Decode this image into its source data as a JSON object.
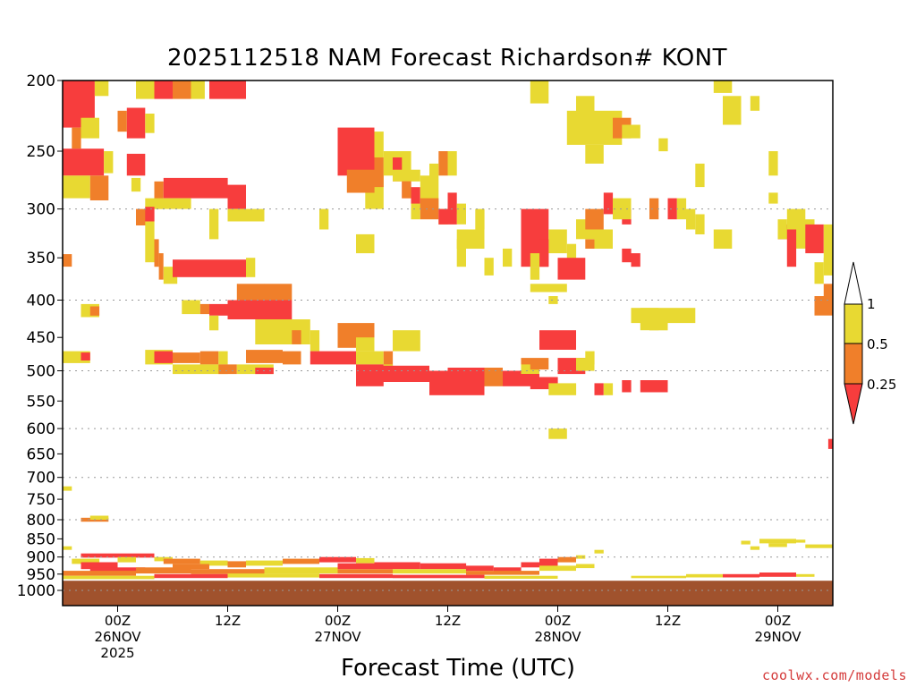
{
  "title": "2025112518 NAM Forecast Richardson# KONT",
  "credit": "coolwx.com/models",
  "chart_data": {
    "type": "heatmap",
    "xlabel": "Forecast Time (UTC)",
    "ylabel": "",
    "x_range_hours": [
      -6,
      78
    ],
    "y_scale": "log",
    "y_range_hPa": [
      1000,
      200
    ],
    "y_ticks": [
      200,
      250,
      300,
      350,
      400,
      450,
      500,
      550,
      600,
      650,
      700,
      750,
      800,
      850,
      900,
      950,
      1000
    ],
    "dotted_gridlines_hPa": [
      300,
      400,
      500,
      600,
      700,
      800,
      900,
      1000
    ],
    "x_ticks": [
      {
        "hour": 0,
        "lines": [
          "00Z",
          "26NOV",
          "2025"
        ]
      },
      {
        "hour": 12,
        "lines": [
          "12Z"
        ]
      },
      {
        "hour": 24,
        "lines": [
          "00Z",
          "27NOV"
        ]
      },
      {
        "hour": 36,
        "lines": [
          "12Z"
        ]
      },
      {
        "hour": 48,
        "lines": [
          "00Z",
          "28NOV"
        ]
      },
      {
        "hour": 60,
        "lines": [
          "12Z"
        ]
      },
      {
        "hour": 72,
        "lines": [
          "00Z",
          "29NOV"
        ]
      }
    ],
    "colorbar": {
      "labels": [
        "1",
        "0.5",
        "0.25"
      ],
      "colors": {
        "upper": "#ffffff",
        "0.5-1": "#e8d932",
        "0.25-0.5": "#f07f2a",
        "below-0.25": "#f73d3d"
      }
    },
    "surface_band": {
      "color": "#a0522d",
      "top_hPa": 970
    },
    "categories": {
      "1": "#e8d932",
      "2": "#f07f2a",
      "3": "#f73d3d"
    },
    "cells": [
      [
        -6,
        -2.5,
        200,
        232,
        3
      ],
      [
        -2.5,
        -1,
        200,
        210,
        1
      ],
      [
        -5,
        -4,
        232,
        248,
        2
      ],
      [
        -4,
        -2,
        225,
        240,
        1
      ],
      [
        2,
        4,
        200,
        212,
        1
      ],
      [
        4,
        6,
        200,
        212,
        3
      ],
      [
        6,
        8,
        200,
        212,
        2
      ],
      [
        8,
        9.5,
        200,
        212,
        1
      ],
      [
        10,
        14,
        200,
        212,
        3
      ],
      [
        1,
        3,
        218,
        240,
        3
      ],
      [
        0,
        1,
        220,
        235,
        2
      ],
      [
        3,
        4,
        222,
        236,
        1
      ],
      [
        -6,
        -1.5,
        248,
        270,
        3
      ],
      [
        -1.5,
        -0.5,
        250,
        268,
        1
      ],
      [
        -6,
        -3,
        270,
        290,
        1
      ],
      [
        -3,
        -1,
        270,
        292,
        2
      ],
      [
        1,
        3,
        252,
        270,
        3
      ],
      [
        1.5,
        2.5,
        272,
        284,
        1
      ],
      [
        4,
        5,
        275,
        300,
        2
      ],
      [
        5,
        12,
        272,
        290,
        3
      ],
      [
        12,
        14,
        278,
        300,
        3
      ],
      [
        3,
        8,
        290,
        300,
        1
      ],
      [
        12,
        16,
        300,
        312,
        1
      ],
      [
        2,
        4,
        300,
        316,
        2
      ],
      [
        3,
        4,
        298,
        312,
        3
      ],
      [
        3,
        4,
        312,
        355,
        1
      ],
      [
        4,
        4.5,
        330,
        360,
        2
      ],
      [
        4.5,
        5,
        345,
        375,
        2
      ],
      [
        5,
        6.5,
        360,
        380,
        1
      ],
      [
        6,
        14,
        352,
        372,
        3
      ],
      [
        14,
        15,
        350,
        372,
        1
      ],
      [
        13,
        16,
        380,
        400,
        2
      ],
      [
        16,
        19,
        380,
        400,
        2
      ],
      [
        13,
        14,
        400,
        416,
        1
      ],
      [
        10,
        12,
        405,
        420,
        3
      ],
      [
        12,
        19,
        400,
        425,
        3
      ],
      [
        7,
        9,
        400,
        418,
        1
      ],
      [
        9,
        10,
        405,
        418,
        2
      ],
      [
        10,
        11,
        420,
        440,
        1
      ],
      [
        15,
        21,
        425,
        460,
        1
      ],
      [
        19,
        20,
        440,
        460,
        2
      ],
      [
        21,
        22,
        440,
        470,
        1
      ],
      [
        -4,
        -2,
        405,
        422,
        1
      ],
      [
        -3,
        -2,
        408,
        420,
        2
      ],
      [
        3,
        6,
        468,
        490,
        1
      ],
      [
        4,
        6,
        470,
        488,
        3
      ],
      [
        6,
        9,
        472,
        488,
        2
      ],
      [
        9,
        11,
        470,
        490,
        2
      ],
      [
        11,
        12,
        470,
        490,
        1
      ],
      [
        14,
        18,
        468,
        488,
        2
      ],
      [
        18,
        20,
        470,
        490,
        2
      ],
      [
        21,
        26,
        470,
        490,
        3
      ],
      [
        26,
        29,
        470,
        490,
        1
      ],
      [
        29,
        30,
        470,
        492,
        2
      ],
      [
        6,
        12,
        490,
        505,
        1
      ],
      [
        11,
        13,
        490,
        505,
        2
      ],
      [
        13,
        17,
        490,
        505,
        1
      ],
      [
        15,
        17,
        495,
        505,
        3
      ],
      [
        26,
        29,
        490,
        525,
        3
      ],
      [
        29,
        30,
        490,
        510,
        1
      ],
      [
        -6,
        -3,
        470,
        488,
        1
      ],
      [
        -4,
        -3,
        472,
        484,
        3
      ],
      [
        26,
        34,
        492,
        518,
        3
      ],
      [
        34,
        36,
        500,
        540,
        3
      ],
      [
        36,
        40,
        495,
        540,
        3
      ],
      [
        40,
        42,
        495,
        525,
        2
      ],
      [
        42,
        44,
        500,
        525,
        3
      ],
      [
        44,
        46,
        495,
        520,
        1
      ],
      [
        30,
        33,
        440,
        470,
        1
      ],
      [
        24,
        28,
        430,
        465,
        2
      ],
      [
        26,
        28,
        450,
        470,
        1
      ],
      [
        27,
        29,
        235,
        300,
        1
      ],
      [
        24,
        28,
        232,
        270,
        3
      ],
      [
        25,
        28,
        265,
        285,
        2
      ],
      [
        28,
        29,
        255,
        280,
        2
      ],
      [
        29,
        32,
        250,
        270,
        1
      ],
      [
        30,
        31,
        255,
        275,
        3
      ],
      [
        31,
        32,
        270,
        290,
        3
      ],
      [
        32,
        33,
        280,
        300,
        3
      ],
      [
        33,
        34,
        270,
        298,
        1
      ],
      [
        35,
        36,
        250,
        270,
        2
      ],
      [
        34,
        35,
        260,
        300,
        1
      ],
      [
        36,
        37,
        250,
        270,
        1
      ],
      [
        36,
        37,
        285,
        305,
        3
      ],
      [
        35,
        36,
        300,
        315,
        1
      ],
      [
        30,
        33,
        265,
        275,
        1
      ],
      [
        31,
        32,
        275,
        290,
        2
      ],
      [
        32,
        33,
        295,
        310,
        1
      ],
      [
        33,
        35,
        290,
        310,
        2
      ],
      [
        35,
        37,
        300,
        315,
        3
      ],
      [
        37,
        38,
        295,
        315,
        1
      ],
      [
        26,
        28,
        325,
        345,
        1
      ],
      [
        38,
        40,
        320,
        340,
        1
      ],
      [
        44,
        47,
        300,
        360,
        3
      ],
      [
        45,
        46,
        360,
        375,
        1
      ],
      [
        47,
        49,
        320,
        345,
        1
      ],
      [
        46,
        47,
        330,
        360,
        3
      ],
      [
        49,
        50,
        335,
        360,
        1
      ],
      [
        48,
        51,
        350,
        375,
        3
      ],
      [
        51,
        52,
        330,
        340,
        2
      ],
      [
        52,
        54,
        320,
        340,
        1
      ],
      [
        55,
        56,
        340,
        355,
        3
      ],
      [
        50,
        52,
        310,
        330,
        1
      ],
      [
        56,
        57,
        345,
        360,
        3
      ],
      [
        55,
        56,
        300,
        315,
        3
      ],
      [
        40,
        41,
        350,
        370,
        1
      ],
      [
        42,
        43,
        340,
        360,
        1
      ],
      [
        45,
        46,
        345,
        360,
        1
      ],
      [
        51,
        53,
        300,
        320,
        2
      ],
      [
        53,
        54,
        285,
        305,
        3
      ],
      [
        54,
        56,
        290,
        310,
        1
      ],
      [
        58,
        59,
        290,
        310,
        2
      ],
      [
        60,
        61,
        290,
        310,
        3
      ],
      [
        61,
        62,
        290,
        310,
        1
      ],
      [
        62,
        63,
        300,
        320,
        1
      ],
      [
        65,
        66,
        320,
        340,
        1
      ],
      [
        66,
        67,
        320,
        340,
        1
      ],
      [
        63,
        64,
        305,
        325,
        1
      ],
      [
        45,
        49,
        380,
        390,
        1
      ],
      [
        47,
        48,
        395,
        405,
        1
      ],
      [
        46,
        50,
        440,
        468,
        3
      ],
      [
        48,
        51,
        480,
        505,
        3
      ],
      [
        44,
        47,
        480,
        498,
        2
      ],
      [
        44,
        45,
        490,
        500,
        1
      ],
      [
        50,
        52,
        480,
        500,
        1
      ],
      [
        51,
        52,
        470,
        490,
        1
      ],
      [
        44,
        46,
        505,
        525,
        3
      ],
      [
        45,
        48,
        510,
        530,
        3
      ],
      [
        47,
        50,
        520,
        540,
        1
      ],
      [
        52,
        53,
        520,
        540,
        3
      ],
      [
        53,
        54,
        520,
        540,
        1
      ],
      [
        55,
        56,
        515,
        535,
        3
      ],
      [
        57,
        58,
        515,
        535,
        3
      ],
      [
        58,
        60,
        515,
        535,
        3
      ],
      [
        56,
        63,
        410,
        430,
        1
      ],
      [
        58,
        60,
        425,
        440,
        1
      ],
      [
        57,
        59,
        410,
        440,
        1
      ],
      [
        47,
        49,
        600,
        620,
        1
      ],
      [
        77.5,
        78,
        620,
        640,
        3
      ],
      [
        45,
        47,
        200,
        215,
        1
      ],
      [
        50,
        52,
        210,
        230,
        1
      ],
      [
        49,
        55,
        220,
        245,
        1
      ],
      [
        54,
        56,
        225,
        240,
        2
      ],
      [
        55,
        57,
        230,
        240,
        1
      ],
      [
        51,
        53,
        245,
        260,
        1
      ],
      [
        65,
        67,
        200,
        208,
        1
      ],
      [
        66,
        68,
        210,
        230,
        1
      ],
      [
        69,
        70,
        210,
        220,
        1
      ],
      [
        59,
        60,
        240,
        250,
        1
      ],
      [
        63,
        64,
        260,
        280,
        1
      ],
      [
        71,
        72,
        250,
        270,
        1
      ],
      [
        71,
        72,
        285,
        295,
        1
      ],
      [
        72,
        74,
        315,
        330,
        3
      ],
      [
        73,
        75,
        300,
        320,
        1
      ],
      [
        74,
        76,
        310,
        340,
        1
      ],
      [
        75,
        77,
        315,
        345,
        3
      ],
      [
        77,
        78,
        315,
        355,
        1
      ],
      [
        76,
        77,
        355,
        380,
        1
      ],
      [
        77,
        78,
        350,
        370,
        1
      ],
      [
        76,
        78,
        395,
        420,
        2
      ],
      [
        73,
        74,
        320,
        360,
        3
      ],
      [
        72,
        73,
        310,
        330,
        1
      ],
      [
        77,
        78,
        380,
        395,
        2
      ],
      [
        -6,
        -5,
        346,
        360,
        2
      ],
      [
        10,
        11,
        300,
        330,
        1
      ],
      [
        22,
        23,
        300,
        320,
        1
      ],
      [
        39,
        40,
        300,
        320,
        1
      ],
      [
        37,
        38,
        320,
        340,
        1
      ],
      [
        37,
        38,
        330,
        360,
        1
      ],
      [
        -6,
        -5,
        720,
        730,
        1
      ],
      [
        -4,
        -1,
        795,
        805,
        2
      ],
      [
        -3,
        -1,
        790,
        800,
        1
      ],
      [
        -6,
        -5,
        870,
        880,
        1
      ],
      [
        -4,
        4,
        890,
        902,
        3
      ],
      [
        -5,
        -2,
        905,
        920,
        1
      ],
      [
        -4,
        0,
        915,
        935,
        3
      ],
      [
        0,
        2,
        900,
        915,
        1
      ],
      [
        -3,
        3,
        930,
        945,
        3
      ],
      [
        4,
        6,
        900,
        912,
        1
      ],
      [
        5,
        9,
        905,
        920,
        2
      ],
      [
        9,
        12,
        910,
        925,
        1
      ],
      [
        6,
        10,
        920,
        935,
        2
      ],
      [
        12,
        14,
        912,
        930,
        2
      ],
      [
        14,
        18,
        910,
        925,
        1
      ],
      [
        18,
        22,
        905,
        920,
        2
      ],
      [
        22,
        26,
        900,
        915,
        3
      ],
      [
        26,
        28,
        903,
        918,
        1
      ],
      [
        24,
        28,
        918,
        935,
        3
      ],
      [
        28,
        33,
        915,
        935,
        3
      ],
      [
        33,
        38,
        918,
        935,
        3
      ],
      [
        38,
        41,
        925,
        940,
        3
      ],
      [
        41,
        44,
        930,
        945,
        3
      ],
      [
        44,
        48,
        915,
        930,
        3
      ],
      [
        46,
        49,
        905,
        915,
        3
      ],
      [
        48,
        50,
        900,
        915,
        2
      ],
      [
        50,
        51,
        895,
        905,
        1
      ],
      [
        52,
        53,
        880,
        890,
        1
      ],
      [
        -6,
        2,
        940,
        955,
        2
      ],
      [
        2,
        8,
        930,
        948,
        2
      ],
      [
        8,
        16,
        935,
        950,
        2
      ],
      [
        16,
        24,
        930,
        948,
        1
      ],
      [
        24,
        30,
        935,
        948,
        2
      ],
      [
        30,
        38,
        935,
        948,
        1
      ],
      [
        38,
        46,
        940,
        952,
        2
      ],
      [
        46,
        50,
        925,
        940,
        1
      ],
      [
        50,
        52,
        920,
        932,
        1
      ],
      [
        -6,
        4,
        955,
        965,
        1
      ],
      [
        4,
        12,
        950,
        962,
        3
      ],
      [
        12,
        22,
        948,
        960,
        1
      ],
      [
        22,
        30,
        950,
        962,
        3
      ],
      [
        30,
        40,
        952,
        962,
        3
      ],
      [
        40,
        48,
        955,
        964,
        1
      ],
      [
        56,
        62,
        955,
        962,
        1
      ],
      [
        62,
        66,
        950,
        960,
        1
      ],
      [
        66,
        70,
        950,
        960,
        3
      ],
      [
        70,
        74,
        945,
        958,
        3
      ],
      [
        74,
        76,
        950,
        958,
        1
      ],
      [
        68,
        69,
        855,
        865,
        1
      ],
      [
        69,
        70,
        870,
        880,
        1
      ],
      [
        70,
        74,
        850,
        862,
        1
      ],
      [
        71,
        73,
        862,
        872,
        1
      ],
      [
        73,
        75,
        852,
        860,
        1
      ],
      [
        75,
        78,
        865,
        875,
        1
      ]
    ]
  }
}
